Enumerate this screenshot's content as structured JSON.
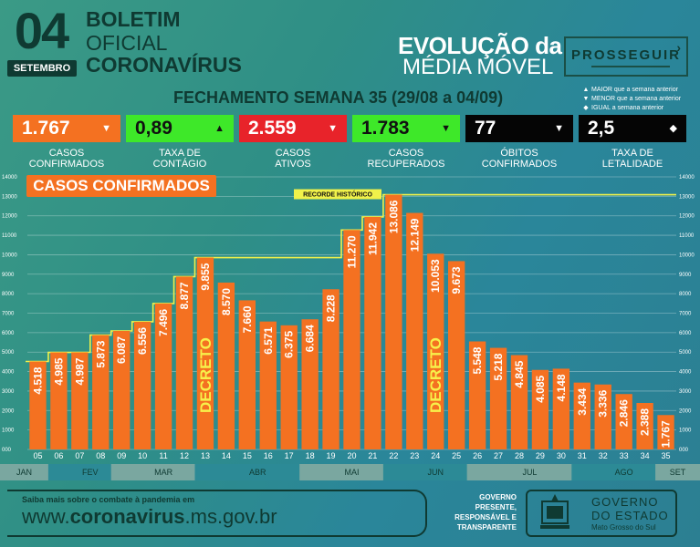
{
  "header": {
    "day": "04",
    "month": "SETEMBRO",
    "bulletin_line1": "BOLETIM",
    "bulletin_line2": "OFICIAL",
    "bulletin_line3": "CORONAVÍRUS",
    "evolution_line1": "EVOLUÇÃO da",
    "evolution_line2": "MÉDIA MÓVEL",
    "program": "PROSSEGUIR",
    "week_title": "FECHAMENTO SEMANA 35 (29/08 a 04/09)"
  },
  "legend": [
    {
      "glyph": "▲",
      "text": "MAIOR que a semana anterior"
    },
    {
      "glyph": "▼",
      "text": "MENOR que a semana anterior"
    },
    {
      "glyph": "◆",
      "text": "IGUAL a semana anterior"
    }
  ],
  "kpis": [
    {
      "value": "1.767",
      "arrow": "▼",
      "label1": "CASOS",
      "label2": "CONFIRMADOS",
      "bg": "#f47121",
      "fg": "#ffffff"
    },
    {
      "value": "0,89",
      "arrow": "▲",
      "label1": "TAXA DE",
      "label2": "CONTÁGIO",
      "bg": "#3ee829",
      "fg": "#111111"
    },
    {
      "value": "2.559",
      "arrow": "▼",
      "label1": "CASOS",
      "label2": "ATIVOS",
      "bg": "#e8232a",
      "fg": "#ffffff"
    },
    {
      "value": "1.783",
      "arrow": "▼",
      "label1": "CASOS",
      "label2": "RECUPERADOS",
      "bg": "#3ee829",
      "fg": "#111111"
    },
    {
      "value": "77",
      "arrow": "▼",
      "label1": "ÓBITOS",
      "label2": "CONFIRMADOS",
      "bg": "#050505",
      "fg": "#ffffff"
    },
    {
      "value": "2,5",
      "arrow": "◆",
      "label1": "TAXA DE",
      "label2": "LETALIDADE",
      "bg": "#050505",
      "fg": "#ffffff"
    }
  ],
  "chart_data": {
    "type": "bar",
    "title": "CASOS CONFIRMADOS",
    "ylim": [
      0,
      14000
    ],
    "yticks": [
      0,
      1000,
      2000,
      3000,
      4000,
      5000,
      6000,
      7000,
      8000,
      9000,
      10000,
      11000,
      12000,
      13000,
      14000
    ],
    "ytick_labels": [
      "000",
      "1000",
      "2000",
      "3000",
      "4000",
      "5000",
      "6000",
      "7000",
      "8000",
      "9000",
      "10000",
      "11000",
      "12000",
      "13000",
      "14000"
    ],
    "categories": [
      "05",
      "06",
      "07",
      "08",
      "09",
      "10",
      "11",
      "12",
      "13",
      "14",
      "15",
      "16",
      "17",
      "18",
      "19",
      "20",
      "21",
      "22",
      "23",
      "24",
      "25",
      "26",
      "27",
      "28",
      "29",
      "30",
      "31",
      "32",
      "33",
      "34",
      "35"
    ],
    "values": [
      4518,
      4985,
      4987,
      5873,
      6087,
      6556,
      7496,
      8877,
      9855,
      8570,
      7660,
      6571,
      6375,
      6684,
      8228,
      11270,
      11942,
      13086,
      12149,
      10053,
      9673,
      5548,
      5218,
      4845,
      4085,
      4148,
      3434,
      3336,
      2846,
      2388,
      1767
    ],
    "value_labels": [
      "4.518",
      "4.985",
      "4.987",
      "5.873",
      "6.087",
      "6.556",
      "7.496",
      "8.877",
      "9.855",
      "8.570",
      "7.660",
      "6.571",
      "6.375",
      "6.684",
      "8.228",
      "11.270",
      "11.942",
      "13.086",
      "12.149",
      "10.053",
      "9.673",
      "5.548",
      "5.218",
      "4.845",
      "4.085",
      "4.148",
      "3.434",
      "3.336",
      "2.846",
      "2.388",
      "1.767"
    ],
    "record_line": {
      "label": "RECORDE HISTÓRICO",
      "value": 13086
    },
    "decretos": [
      {
        "week": "13",
        "label": "DECRETO"
      },
      {
        "week": "24",
        "label": "DECRETO"
      }
    ],
    "months": [
      {
        "label": "JAN",
        "from": "05",
        "to": "05",
        "color": "#7aa7a0"
      },
      {
        "label": "FEV",
        "from": "06",
        "to": "09",
        "color": "#2c8a96"
      },
      {
        "label": "MAR",
        "from": "09",
        "to": "13",
        "color": "#7aa7a0"
      },
      {
        "label": "ABR",
        "from": "13",
        "to": "18",
        "color": "#2c8a96"
      },
      {
        "label": "MAI",
        "from": "18",
        "to": "22",
        "color": "#7aa7a0"
      },
      {
        "label": "JUN",
        "from": "22",
        "to": "26",
        "color": "#2c8a96"
      },
      {
        "label": "JUL",
        "from": "26",
        "to": "31",
        "color": "#7aa7a0"
      },
      {
        "label": "AGO",
        "from": "31",
        "to": "35",
        "color": "#2c8a96"
      },
      {
        "label": "SET",
        "from": "35",
        "to": "35",
        "color": "#7aa7a0"
      }
    ],
    "bar_color": "#f47121",
    "record_color": "#f1f24a",
    "grid": true
  },
  "footer": {
    "small": "Saiba mais sobre o combate à pandemia em",
    "url_pre": "www.",
    "url_bold": "coronavirus",
    "url_post": ".ms.gov.br",
    "slogan": "GOVERNO PRESENTE, RESPONSÁVEL E TRANSPARENTE",
    "gov1": "GOVERNO",
    "gov2": "DO ESTADO",
    "gov3": "Mato Grosso do Sul"
  }
}
